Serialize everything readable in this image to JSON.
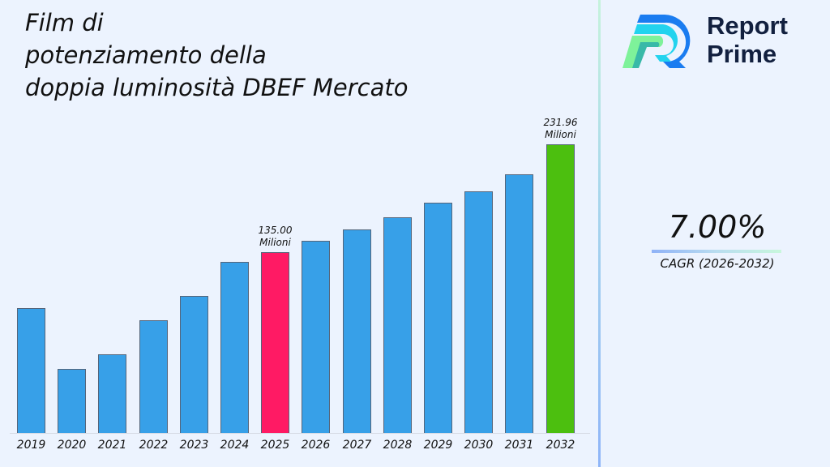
{
  "title": {
    "lines": [
      "Film di",
      "potenziamento della",
      "doppia luminosità DBEF Mercato"
    ]
  },
  "brand": {
    "line1": "Report",
    "line2": "Prime",
    "logo_icon": "report-prime-logo-icon"
  },
  "cagr": {
    "value": "7.00%",
    "label": "CAGR (2026-2032)"
  },
  "colors": {
    "default_bar": "#37a0e8",
    "highlight_2025": "#ff1a64",
    "highlight_2032": "#4cbf0f",
    "background": "#ecf3fe"
  },
  "chart_data": {
    "type": "bar",
    "title": "Film di potenziamento della doppia luminosità DBEF Mercato",
    "xlabel": "",
    "ylabel": "",
    "grid": false,
    "categories": [
      "2019",
      "2020",
      "2021",
      "2022",
      "2023",
      "2024",
      "2025",
      "2026",
      "2027",
      "2028",
      "2029",
      "2030",
      "2031",
      "2032"
    ],
    "values": [
      84.8,
      30.1,
      43.2,
      73.8,
      95.7,
      126.3,
      135.0,
      145.2,
      155.4,
      166.4,
      179.5,
      189.7,
      205.0,
      231.96
    ],
    "unit": "Milioni",
    "annotations": [
      {
        "category": "2025",
        "text_value": "135.00",
        "text_unit": "Milioni"
      },
      {
        "category": "2032",
        "text_value": "231.96",
        "text_unit": "Milioni"
      }
    ],
    "bar_colors": [
      "#37a0e8",
      "#37a0e8",
      "#37a0e8",
      "#37a0e8",
      "#37a0e8",
      "#37a0e8",
      "#ff1a64",
      "#37a0e8",
      "#37a0e8",
      "#37a0e8",
      "#37a0e8",
      "#37a0e8",
      "#37a0e8",
      "#4cbf0f"
    ],
    "cagr": "7.00%",
    "cagr_period": "2026-2032"
  }
}
